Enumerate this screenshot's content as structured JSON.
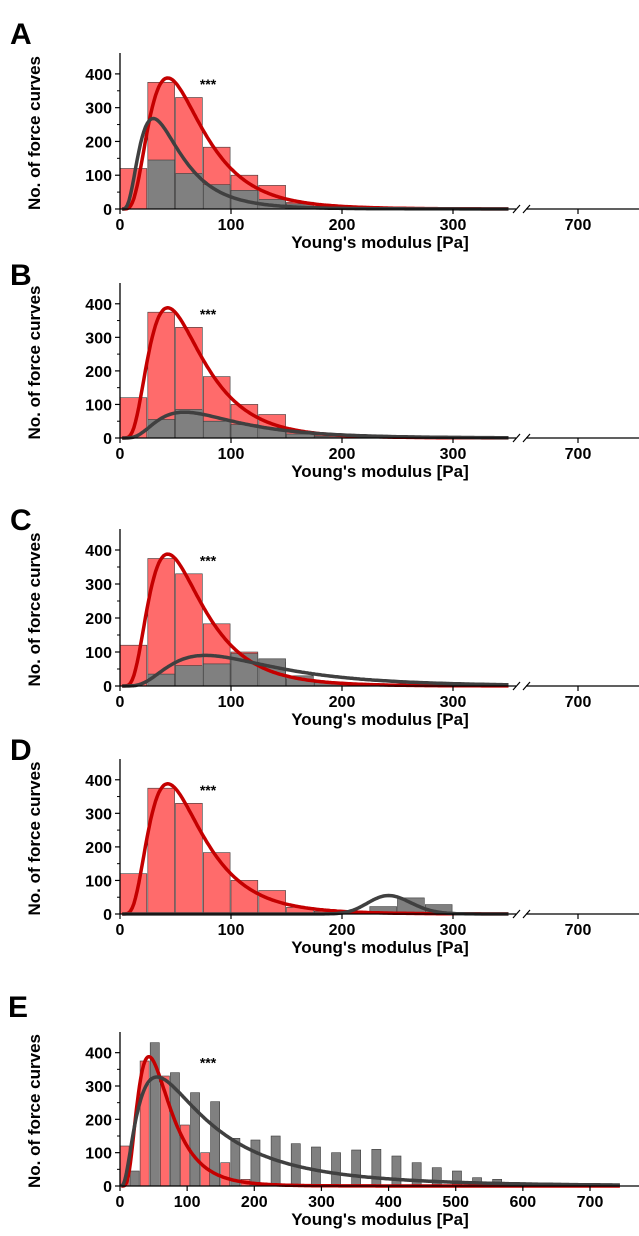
{
  "colors": {
    "red_bar": "#ff6b6b",
    "red_line": "#c40000",
    "gray_bar": "#808080",
    "gray_line": "#404040"
  },
  "chart_data": [
    {
      "panel_label": "A",
      "type": "bar",
      "significance": "***",
      "xlabel": "Young's modulus [Pa]",
      "ylabel": "No. of force curves",
      "ylim": [
        0,
        450
      ],
      "yticks": [
        0,
        100,
        200,
        300,
        400
      ],
      "xticks": [
        0,
        100,
        200,
        300,
        700
      ],
      "x_axis_break": true,
      "bin_width": 25,
      "series": [
        {
          "values": [
            [
              0,
              120
            ],
            [
              25,
              375
            ],
            [
              50,
              330
            ],
            [
              75,
              183
            ],
            [
              100,
              100
            ],
            [
              125,
              70
            ],
            [
              150,
              20
            ],
            [
              175,
              8
            ],
            [
              200,
              4
            ]
          ]
        },
        {
          "values": [
            [
              25,
              145
            ],
            [
              50,
              105
            ],
            [
              75,
              72
            ],
            [
              100,
              55
            ],
            [
              125,
              28
            ],
            [
              150,
              15
            ],
            [
              175,
              6
            ],
            [
              200,
              3
            ]
          ]
        }
      ],
      "curves": [
        {
          "peak_x": 43,
          "peak_y": 388,
          "color": "red"
        },
        {
          "peak_x": 30,
          "peak_y": 268,
          "color": "gray"
        }
      ]
    },
    {
      "panel_label": "B",
      "type": "bar",
      "significance": "***",
      "xlabel": "Young's modulus [Pa]",
      "ylabel": "No. of force curves",
      "ylim": [
        0,
        450
      ],
      "yticks": [
        0,
        100,
        200,
        300,
        400
      ],
      "xticks": [
        0,
        100,
        200,
        300,
        700
      ],
      "x_axis_break": true,
      "bin_width": 25,
      "series": [
        {
          "values": [
            [
              0,
              120
            ],
            [
              25,
              375
            ],
            [
              50,
              330
            ],
            [
              75,
              183
            ],
            [
              100,
              100
            ],
            [
              125,
              70
            ],
            [
              150,
              20
            ],
            [
              175,
              8
            ],
            [
              200,
              4
            ]
          ]
        },
        {
          "values": [
            [
              25,
              55
            ],
            [
              50,
              85
            ],
            [
              75,
              50
            ],
            [
              100,
              40
            ],
            [
              125,
              30
            ],
            [
              150,
              12
            ],
            [
              175,
              5
            ]
          ]
        }
      ],
      "curves": [
        {
          "peak_x": 43,
          "peak_y": 388,
          "color": "red"
        },
        {
          "peak_x": 58,
          "peak_y": 77,
          "color": "gray"
        }
      ]
    },
    {
      "panel_label": "C",
      "type": "bar",
      "significance": "***",
      "xlabel": "Young's modulus [Pa]",
      "ylabel": "No. of force curves",
      "ylim": [
        0,
        450
      ],
      "yticks": [
        0,
        100,
        200,
        300,
        400
      ],
      "xticks": [
        0,
        100,
        200,
        300,
        700
      ],
      "x_axis_break": true,
      "bin_width": 25,
      "series": [
        {
          "values": [
            [
              0,
              120
            ],
            [
              25,
              375
            ],
            [
              50,
              330
            ],
            [
              75,
              183
            ],
            [
              100,
              100
            ],
            [
              125,
              70
            ],
            [
              150,
              20
            ],
            [
              175,
              8
            ],
            [
              200,
              4
            ]
          ]
        },
        {
          "values": [
            [
              25,
              35
            ],
            [
              50,
              60
            ],
            [
              75,
              65
            ],
            [
              100,
              95
            ],
            [
              125,
              80
            ],
            [
              150,
              30
            ],
            [
              175,
              10
            ]
          ]
        }
      ],
      "curves": [
        {
          "peak_x": 43,
          "peak_y": 388,
          "color": "red"
        },
        {
          "peak_x": 77,
          "peak_y": 90,
          "color": "gray"
        }
      ]
    },
    {
      "panel_label": "D",
      "type": "bar",
      "significance": "***",
      "xlabel": "Young's modulus [Pa]",
      "ylabel": "No. of force curves",
      "ylim": [
        0,
        450
      ],
      "yticks": [
        0,
        100,
        200,
        300,
        400
      ],
      "xticks": [
        0,
        100,
        200,
        300,
        700
      ],
      "x_axis_break": true,
      "bin_width": 25,
      "series": [
        {
          "values": [
            [
              0,
              120
            ],
            [
              25,
              375
            ],
            [
              50,
              330
            ],
            [
              75,
              183
            ],
            [
              100,
              100
            ],
            [
              125,
              70
            ],
            [
              150,
              20
            ],
            [
              175,
              8
            ],
            [
              200,
              4
            ]
          ]
        },
        {
          "values": [
            [
              175,
              4
            ],
            [
              225,
              22
            ],
            [
              250,
              48
            ],
            [
              275,
              28
            ]
          ]
        }
      ],
      "curves": [
        {
          "peak_x": 43,
          "peak_y": 388,
          "color": "red"
        },
        {
          "peak_x": 242,
          "peak_y": 55,
          "color": "gray"
        }
      ]
    },
    {
      "panel_label": "E",
      "type": "bar",
      "significance": "***",
      "xlabel": "Young's modulus [Pa]",
      "ylabel": "No. of force curves",
      "ylim": [
        0,
        450
      ],
      "yticks": [
        0,
        100,
        200,
        300,
        400
      ],
      "xticks": [
        0,
        100,
        200,
        300,
        400,
        500,
        600,
        700
      ],
      "x_axis_break": false,
      "bin_width": 15,
      "series": [
        {
          "values": [
            [
              0,
              120
            ],
            [
              30,
              375
            ],
            [
              60,
              330
            ],
            [
              90,
              183
            ],
            [
              120,
              100
            ],
            [
              150,
              70
            ],
            [
              180,
              20
            ],
            [
              210,
              8
            ]
          ]
        },
        {
          "values": [
            [
              15,
              45
            ],
            [
              45,
              430
            ],
            [
              75,
              340
            ],
            [
              105,
              280
            ],
            [
              135,
              253
            ],
            [
              165,
              143
            ],
            [
              195,
              138
            ],
            [
              225,
              150
            ],
            [
              255,
              127
            ],
            [
              285,
              117
            ],
            [
              315,
              100
            ],
            [
              345,
              108
            ],
            [
              375,
              110
            ],
            [
              405,
              90
            ],
            [
              435,
              70
            ],
            [
              465,
              55
            ],
            [
              495,
              45
            ],
            [
              525,
              25
            ],
            [
              555,
              20
            ],
            [
              585,
              8
            ],
            [
              615,
              5
            ]
          ]
        }
      ],
      "curves": [
        {
          "peak_x": 43,
          "peak_y": 388,
          "color": "red"
        },
        {
          "peak_x": 55,
          "peak_y": 327,
          "color": "gray"
        }
      ]
    }
  ]
}
